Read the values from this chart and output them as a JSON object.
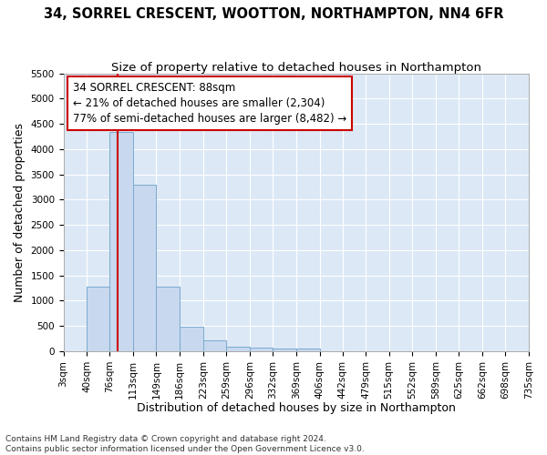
{
  "title": "34, SORREL CRESCENT, WOOTTON, NORTHAMPTON, NN4 6FR",
  "subtitle": "Size of property relative to detached houses in Northampton",
  "xlabel": "Distribution of detached houses by size in Northampton",
  "ylabel": "Number of detached properties",
  "footer_line1": "Contains HM Land Registry data © Crown copyright and database right 2024.",
  "footer_line2": "Contains public sector information licensed under the Open Government Licence v3.0.",
  "bar_edges": [
    3,
    40,
    76,
    113,
    149,
    186,
    223,
    259,
    296,
    332,
    369,
    406,
    442,
    479,
    515,
    552,
    589,
    625,
    662,
    698,
    735
  ],
  "bar_values": [
    0,
    1270,
    4330,
    3300,
    1280,
    490,
    215,
    95,
    75,
    55,
    55,
    0,
    0,
    0,
    0,
    0,
    0,
    0,
    0,
    0
  ],
  "bar_color": "#c8d8ee",
  "bar_edge_color": "#7aaad0",
  "vline_x": 88,
  "vline_color": "#cc0000",
  "annotation_line1": "34 SORREL CRESCENT: 88sqm",
  "annotation_line2": "← 21% of detached houses are smaller (2,304)",
  "annotation_line3": "77% of semi-detached houses are larger (8,482) →",
  "ylim": [
    0,
    5500
  ],
  "yticks": [
    0,
    500,
    1000,
    1500,
    2000,
    2500,
    3000,
    3500,
    4000,
    4500,
    5000,
    5500
  ],
  "bg_color": "#dce8f5",
  "grid_color": "#ffffff",
  "title_fontsize": 10.5,
  "subtitle_fontsize": 9.5,
  "axis_label_fontsize": 9,
  "tick_fontsize": 7.5,
  "annotation_fontsize": 8.5,
  "footer_fontsize": 6.5
}
